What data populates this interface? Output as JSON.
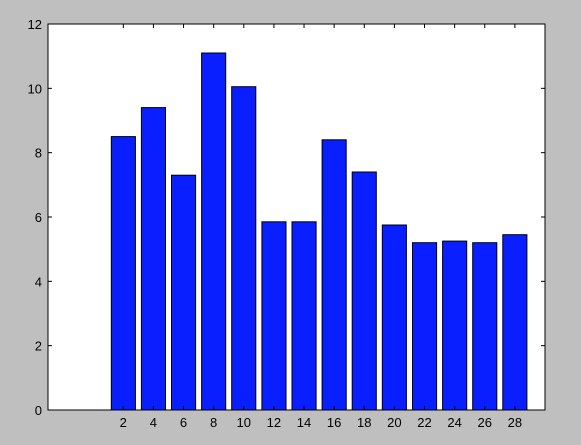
{
  "chart_data": {
    "type": "bar",
    "categories": [
      "2",
      "4",
      "6",
      "8",
      "10",
      "12",
      "14",
      "16",
      "18",
      "20",
      "22",
      "24",
      "26",
      "28"
    ],
    "x": [
      2,
      4,
      6,
      8,
      10,
      12,
      14,
      16,
      18,
      20,
      22,
      24,
      26,
      28
    ],
    "values": [
      8.5,
      9.4,
      7.3,
      11.1,
      10.05,
      5.85,
      5.85,
      8.4,
      7.4,
      5.75,
      5.2,
      5.25,
      5.2,
      5.45
    ],
    "title": "",
    "xlabel": "",
    "ylabel": "",
    "xlim": [
      -3,
      30
    ],
    "ylim": [
      0,
      12
    ],
    "yticks": [
      0,
      2,
      4,
      6,
      8,
      10,
      12
    ],
    "xticks": [
      2,
      4,
      6,
      8,
      10,
      12,
      14,
      16,
      18,
      20,
      22,
      24,
      26,
      28
    ],
    "bar_color": "#0a1fff",
    "background": "#bfbfbf",
    "plot_background": "#ffffff",
    "grid": false,
    "legend": "none"
  }
}
